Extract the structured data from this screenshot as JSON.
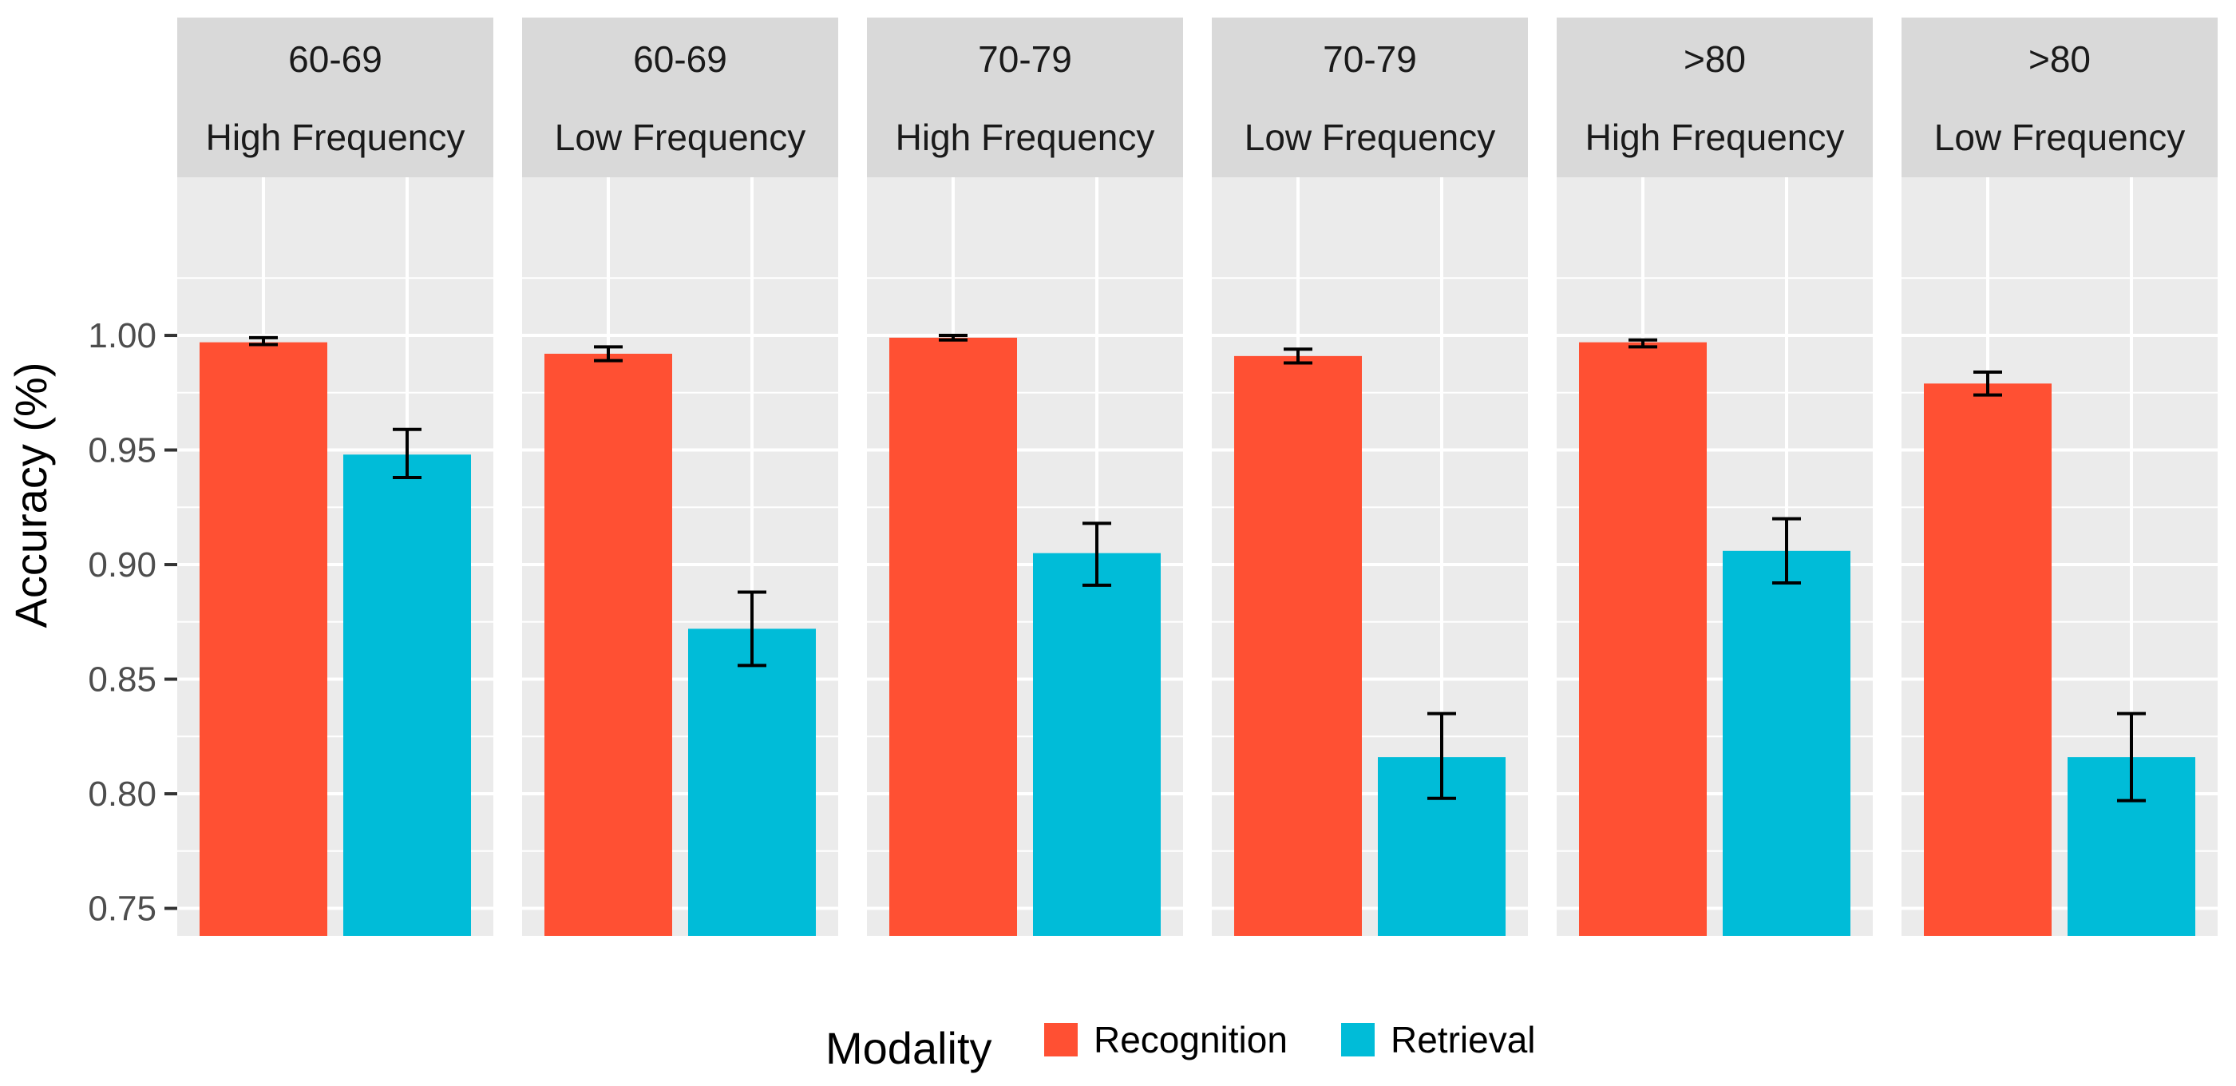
{
  "chart_data": {
    "type": "bar",
    "ylabel": "Accuracy (%)",
    "ylim": [
      0.738,
      1.069
    ],
    "yticks": [
      0.75,
      0.8,
      0.85,
      0.9,
      0.95,
      1.0
    ],
    "ytick_labels": [
      "0.75",
      "0.80",
      "0.85",
      "0.90",
      "0.95",
      "1.00"
    ],
    "grid": true,
    "legend_position": "bottom",
    "legend": {
      "title": "Modality",
      "items": [
        {
          "label": "Recognition",
          "color": "#F8766D"
        },
        {
          "label": "Retrieval",
          "color": "#00BFC4"
        }
      ]
    },
    "colors": {
      "Recognition": "#FF5033",
      "Retrieval": "#00BCD8",
      "panel_bg": "#EBEBEB",
      "strip_bg": "#D9D9D9",
      "grid": "#FFFFFF"
    },
    "panels": [
      {
        "age": "60-69",
        "frequency": "High Frequency",
        "bars": [
          {
            "modality": "Recognition",
            "value": 0.997,
            "err_low": 0.996,
            "err_high": 0.999
          },
          {
            "modality": "Retrieval",
            "value": 0.948,
            "err_low": 0.938,
            "err_high": 0.959
          }
        ]
      },
      {
        "age": "60-69",
        "frequency": "Low Frequency",
        "bars": [
          {
            "modality": "Recognition",
            "value": 0.992,
            "err_low": 0.989,
            "err_high": 0.995
          },
          {
            "modality": "Retrieval",
            "value": 0.872,
            "err_low": 0.856,
            "err_high": 0.888
          }
        ]
      },
      {
        "age": "70-79",
        "frequency": "High Frequency",
        "bars": [
          {
            "modality": "Recognition",
            "value": 0.999,
            "err_low": 0.998,
            "err_high": 1.0
          },
          {
            "modality": "Retrieval",
            "value": 0.905,
            "err_low": 0.891,
            "err_high": 0.918
          }
        ]
      },
      {
        "age": "70-79",
        "frequency": "Low Frequency",
        "bars": [
          {
            "modality": "Recognition",
            "value": 0.991,
            "err_low": 0.988,
            "err_high": 0.994
          },
          {
            "modality": "Retrieval",
            "value": 0.816,
            "err_low": 0.798,
            "err_high": 0.835
          }
        ]
      },
      {
        "age": ">80",
        "frequency": "High Frequency",
        "bars": [
          {
            "modality": "Recognition",
            "value": 0.997,
            "err_low": 0.995,
            "err_high": 0.998
          },
          {
            "modality": "Retrieval",
            "value": 0.906,
            "err_low": 0.892,
            "err_high": 0.92
          }
        ]
      },
      {
        "age": ">80",
        "frequency": "Low Frequency",
        "bars": [
          {
            "modality": "Recognition",
            "value": 0.979,
            "err_low": 0.974,
            "err_high": 0.984
          },
          {
            "modality": "Retrieval",
            "value": 0.816,
            "err_low": 0.797,
            "err_high": 0.835
          }
        ]
      }
    ]
  }
}
